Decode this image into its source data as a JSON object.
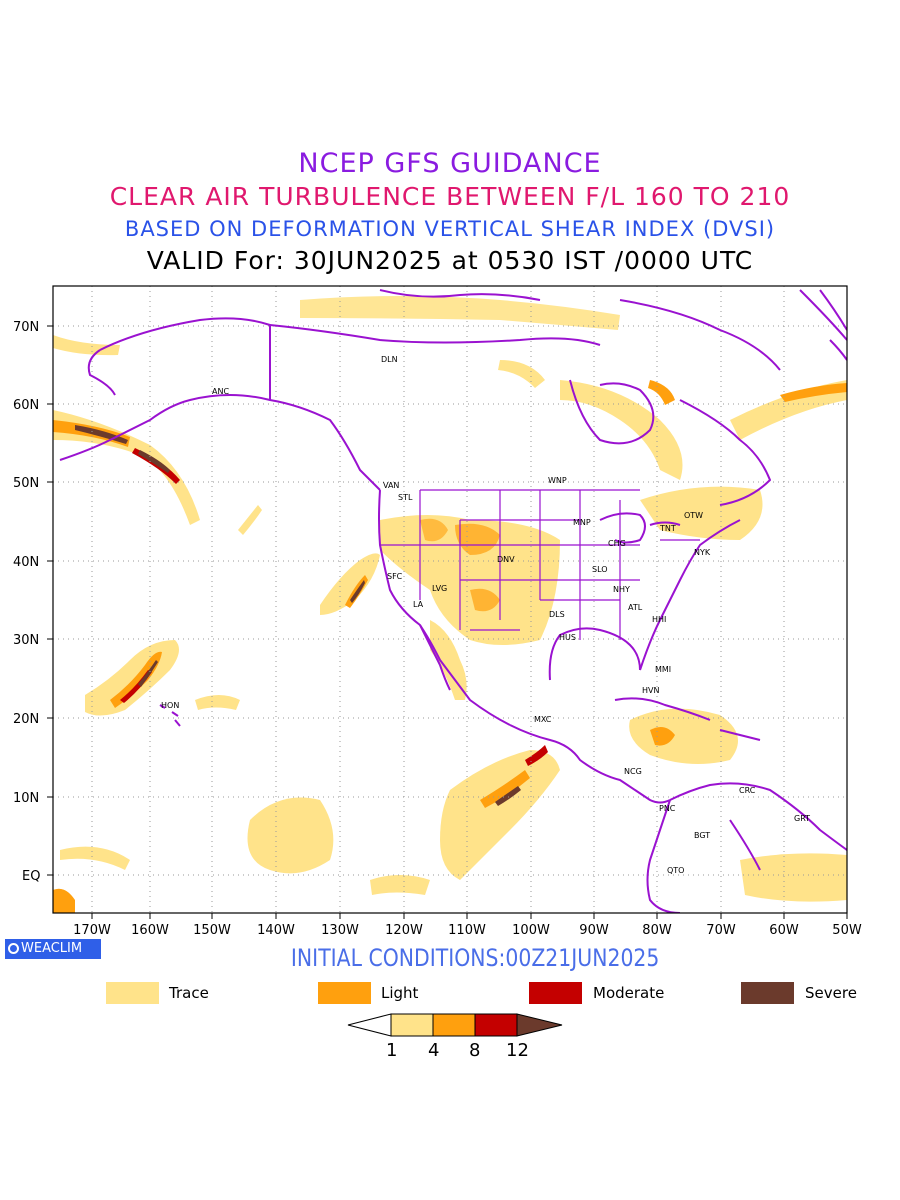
{
  "titles": {
    "line1": "NCEP GFS GUIDANCE",
    "line2": "CLEAR AIR TURBULENCE BETWEEN F/L 160 TO 210",
    "line3": "BASED ON DEFORMATION VERTICAL SHEAR INDEX (DVSI)",
    "line4": "VALID For: 30JUN2025 at 0530 IST /0000 UTC"
  },
  "latitude_labels": [
    "70N",
    "60N",
    "50N",
    "40N",
    "30N",
    "20N",
    "10N",
    "EQ"
  ],
  "longitude_labels": [
    "170W",
    "160W",
    "150W",
    "140W",
    "130W",
    "120W",
    "110W",
    "100W",
    "90W",
    "80W",
    "70W",
    "60W",
    "50W"
  ],
  "stations": [
    "DLN",
    "ANC",
    "VAN",
    "STL",
    "WNP",
    "OTW",
    "MNP",
    "TNT",
    "CHG",
    "NYK",
    "DNV",
    "SFC",
    "LVG",
    "SLO",
    "LA",
    "NHY",
    "ATL",
    "DLS",
    "HHI",
    "HUS",
    "MMI",
    "HVN",
    "HON",
    "MXC",
    "NCG",
    "CRC",
    "PNC",
    "GRT",
    "BGT",
    "QTO"
  ],
  "logo": "WEACLIM",
  "initial_conditions": "INITIAL CONDITIONS:00Z21JUN2025",
  "legend": [
    {
      "label": "Trace",
      "color": "#ffe38a"
    },
    {
      "label": "Light",
      "color": "#ffa00e"
    },
    {
      "label": "Moderate",
      "color": "#c40000"
    },
    {
      "label": "Severe",
      "color": "#6b3a2c"
    }
  ],
  "colorbar": {
    "ticks": [
      "1",
      "4",
      "8",
      "12"
    ],
    "colors": [
      "#ffffff",
      "#ffe38a",
      "#ffa00e",
      "#c40000",
      "#6b3a2c"
    ]
  },
  "map_colors": {
    "boundaries": "#9a12d0",
    "trace": "#ffe38a",
    "light": "#ffa00e",
    "moderate": "#c40000",
    "severe": "#6b3a2c"
  }
}
